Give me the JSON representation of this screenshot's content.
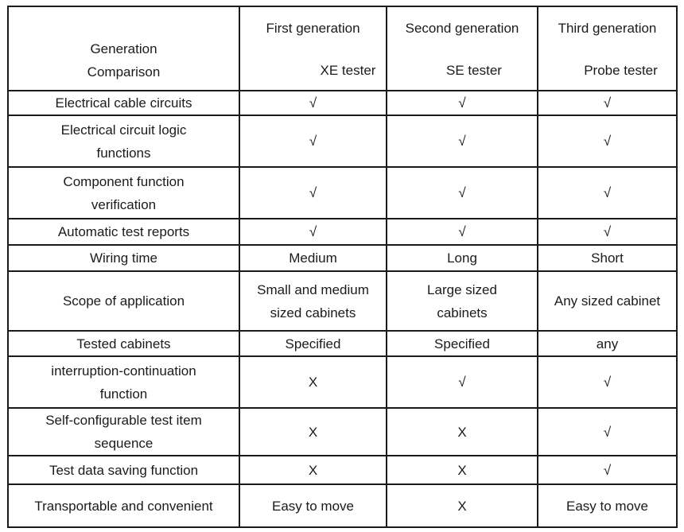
{
  "table": {
    "header": {
      "corner_lines": [
        "Generation",
        "Comparison"
      ],
      "generations": [
        {
          "generation_lines": [
            "First generation"
          ],
          "tester_lines": [
            "XE tester"
          ]
        },
        {
          "generation_lines": [
            "Second generation"
          ],
          "tester_lines": [
            "SE tester"
          ]
        },
        {
          "generation_lines": [
            "Third generation"
          ],
          "tester_lines": [
            "Probe tester"
          ]
        }
      ]
    },
    "rows": [
      {
        "feature_lines": [
          "Electrical cable circuits"
        ],
        "cells": [
          [
            "√"
          ],
          [
            "√"
          ],
          [
            "√"
          ]
        ]
      },
      {
        "feature_lines": [
          "Electrical circuit logic",
          "functions"
        ],
        "cells": [
          [
            "√"
          ],
          [
            "√"
          ],
          [
            "√"
          ]
        ]
      },
      {
        "feature_lines": [
          "Component function",
          "verification"
        ],
        "cells": [
          [
            "√"
          ],
          [
            "√"
          ],
          [
            "√"
          ]
        ]
      },
      {
        "feature_lines": [
          "Automatic test reports"
        ],
        "cells": [
          [
            "√"
          ],
          [
            "√"
          ],
          [
            "√"
          ]
        ]
      },
      {
        "feature_lines": [
          "Wiring time"
        ],
        "cells": [
          [
            "Medium"
          ],
          [
            "Long"
          ],
          [
            "Short"
          ]
        ]
      },
      {
        "feature_lines": [
          "Scope of application"
        ],
        "cells": [
          [
            "Small and medium",
            "sized cabinets"
          ],
          [
            "Large sized",
            "cabinets"
          ],
          [
            "Any sized cabinet"
          ]
        ]
      },
      {
        "feature_lines": [
          "Tested cabinets"
        ],
        "cells": [
          [
            "Specified"
          ],
          [
            "Specified"
          ],
          [
            "any"
          ]
        ]
      },
      {
        "feature_lines": [
          "interruption-continuation",
          "function"
        ],
        "cells": [
          [
            "X"
          ],
          [
            "√"
          ],
          [
            "√"
          ]
        ]
      },
      {
        "feature_lines": [
          "Self-configurable test item",
          "sequence"
        ],
        "cells": [
          [
            "X"
          ],
          [
            "X"
          ],
          [
            "√"
          ]
        ]
      },
      {
        "feature_lines": [
          "Test data saving function"
        ],
        "cells": [
          [
            "X"
          ],
          [
            "X"
          ],
          [
            "√"
          ]
        ]
      },
      {
        "feature_lines": [
          "Transportable and convenient"
        ],
        "cells": [
          [
            "Easy to move"
          ],
          [
            "X"
          ],
          [
            "Easy to move"
          ]
        ]
      }
    ]
  }
}
